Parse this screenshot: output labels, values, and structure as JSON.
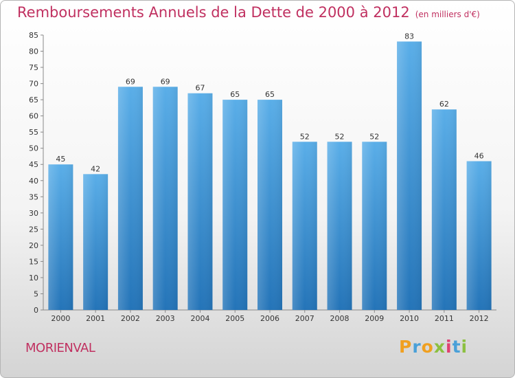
{
  "title": "Remboursements Annuels de la Dette de 2000 à 2012",
  "unit": "(en milliers d'€)",
  "place": "MORIENVAL",
  "logo": {
    "letters": [
      "P",
      "r",
      "o",
      "x",
      "i",
      "t",
      "i"
    ]
  },
  "colors": {
    "title": "#c03060",
    "bar_light": "#5aaee8",
    "bar_dark": "#2474b8",
    "axis": "#666666"
  },
  "chart_data": {
    "type": "bar",
    "title": "Remboursements Annuels de la Dette de 2000 à 2012",
    "ylabel": "(en milliers d'€)",
    "xlabel": "",
    "categories": [
      "2000",
      "2001",
      "2002",
      "2003",
      "2004",
      "2005",
      "2006",
      "2007",
      "2008",
      "2009",
      "2010",
      "2011",
      "2012"
    ],
    "values": [
      45,
      42,
      69,
      69,
      67,
      65,
      65,
      52,
      52,
      52,
      83,
      62,
      46
    ],
    "ylim": [
      0,
      85
    ],
    "yticks": [
      0,
      5,
      10,
      15,
      20,
      25,
      30,
      35,
      40,
      45,
      50,
      55,
      60,
      65,
      70,
      75,
      80,
      85
    ],
    "grid": false
  }
}
